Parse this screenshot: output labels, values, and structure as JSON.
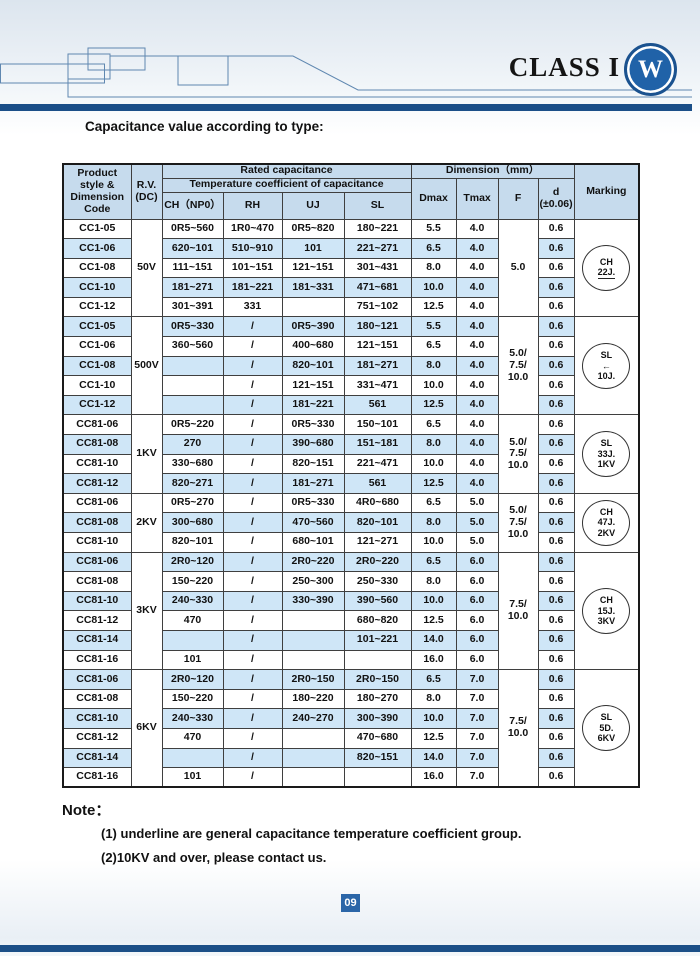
{
  "page": {
    "brand": "CLASS I",
    "logo_letter": "W",
    "title": "Capacitance value according to type:",
    "page_number": "09"
  },
  "table": {
    "headers": {
      "product": "Product\nstyle &\nDimension\nCode",
      "rv": "R.V.\n(DC)",
      "rated_capacitance": "Rated capacitance",
      "temp_coeff": "Temperature coefficient of capacitance",
      "coeff_cols": [
        "CH（NP0）",
        "RH",
        "UJ",
        "SL"
      ],
      "dimension": "Dimension（mm）",
      "dim_cols": [
        "Dmax",
        "Tmax",
        "F",
        "d\n(±0.06)"
      ],
      "marking": "Marking"
    },
    "groups": [
      {
        "rv": "50V",
        "f": "5.0",
        "marking": [
          "CH",
          "22J."
        ],
        "marking_underline_last": true,
        "rows": [
          {
            "code": "CC1-05",
            "ch": "0R5~560",
            "rh": "1R0~470",
            "uj": "0R5~820",
            "sl": "180~221",
            "dmax": "5.5",
            "tmax": "4.0",
            "d": "0.6"
          },
          {
            "code": "CC1-06",
            "ch": "620~101",
            "rh": "510~910",
            "uj": "101",
            "sl": "221~271",
            "dmax": "6.5",
            "tmax": "4.0",
            "d": "0.6"
          },
          {
            "code": "CC1-08",
            "ch": "111~151",
            "rh": "101~151",
            "uj": "121~151",
            "sl": "301~431",
            "dmax": "8.0",
            "tmax": "4.0",
            "d": "0.6"
          },
          {
            "code": "CC1-10",
            "ch": "181~271",
            "rh": "181~221",
            "uj": "181~331",
            "sl": "471~681",
            "dmax": "10.0",
            "tmax": "4.0",
            "d": "0.6"
          },
          {
            "code": "CC1-12",
            "ch": "301~391",
            "rh": "331",
            "uj": "",
            "sl": "751~102",
            "dmax": "12.5",
            "tmax": "4.0",
            "d": "0.6"
          }
        ]
      },
      {
        "rv": "500V",
        "f": "5.0/\n7.5/\n10.0",
        "marking": [
          "SL",
          "←",
          "10J."
        ],
        "marking_underline_last": false,
        "rows": [
          {
            "code": "CC1-05",
            "ch": "0R5~330",
            "rh": "/",
            "uj": "0R5~390",
            "sl": "180~121",
            "dmax": "5.5",
            "tmax": "4.0",
            "d": "0.6"
          },
          {
            "code": "CC1-06",
            "ch": "360~560",
            "rh": "/",
            "uj": "400~680",
            "sl": "121~151",
            "dmax": "6.5",
            "tmax": "4.0",
            "d": "0.6"
          },
          {
            "code": "CC1-08",
            "ch": "",
            "rh": "/",
            "uj": "820~101",
            "sl": "181~271",
            "dmax": "8.0",
            "tmax": "4.0",
            "d": "0.6"
          },
          {
            "code": "CC1-10",
            "ch": "",
            "rh": "/",
            "uj": "121~151",
            "sl": "331~471",
            "dmax": "10.0",
            "tmax": "4.0",
            "d": "0.6"
          },
          {
            "code": "CC1-12",
            "ch": "",
            "rh": "/",
            "uj": "181~221",
            "sl": "561",
            "dmax": "12.5",
            "tmax": "4.0",
            "d": "0.6"
          }
        ]
      },
      {
        "rv": "1KV",
        "f": "5.0/\n7.5/\n10.0",
        "marking": [
          "SL",
          "33J.",
          "1KV"
        ],
        "marking_underline_last": false,
        "rows": [
          {
            "code": "CC81-06",
            "ch": "0R5~220",
            "rh": "/",
            "uj": "0R5~330",
            "sl": "150~101",
            "dmax": "6.5",
            "tmax": "4.0",
            "d": "0.6"
          },
          {
            "code": "CC81-08",
            "ch": "270",
            "rh": "/",
            "uj": "390~680",
            "sl": "151~181",
            "dmax": "8.0",
            "tmax": "4.0",
            "d": "0.6"
          },
          {
            "code": "CC81-10",
            "ch": "330~680",
            "rh": "/",
            "uj": "820~151",
            "sl": "221~471",
            "dmax": "10.0",
            "tmax": "4.0",
            "d": "0.6"
          },
          {
            "code": "CC81-12",
            "ch": "820~271",
            "rh": "/",
            "uj": "181~271",
            "sl": "561",
            "dmax": "12.5",
            "tmax": "4.0",
            "d": "0.6"
          }
        ]
      },
      {
        "rv": "2KV",
        "f": "5.0/\n7.5/\n10.0",
        "marking": [
          "CH",
          "47J.",
          "2KV"
        ],
        "marking_underline_last": false,
        "rows": [
          {
            "code": "CC81-06",
            "ch": "0R5~270",
            "rh": "/",
            "uj": "0R5~330",
            "sl": "4R0~680",
            "dmax": "6.5",
            "tmax": "5.0",
            "d": "0.6"
          },
          {
            "code": "CC81-08",
            "ch": "300~680",
            "rh": "/",
            "uj": "470~560",
            "sl": "820~101",
            "dmax": "8.0",
            "tmax": "5.0",
            "d": "0.6"
          },
          {
            "code": "CC81-10",
            "ch": "820~101",
            "rh": "/",
            "uj": "680~101",
            "sl": "121~271",
            "dmax": "10.0",
            "tmax": "5.0",
            "d": "0.6"
          }
        ]
      },
      {
        "rv": "3KV",
        "f": "7.5/\n10.0",
        "marking": [
          "CH",
          "15J.",
          "3KV"
        ],
        "marking_underline_last": false,
        "rows": [
          {
            "code": "CC81-06",
            "ch": "2R0~120",
            "rh": "/",
            "uj": "2R0~220",
            "sl": "2R0~220",
            "dmax": "6.5",
            "tmax": "6.0",
            "d": "0.6"
          },
          {
            "code": "CC81-08",
            "ch": "150~220",
            "rh": "/",
            "uj": "250~300",
            "sl": "250~330",
            "dmax": "8.0",
            "tmax": "6.0",
            "d": "0.6"
          },
          {
            "code": "CC81-10",
            "ch": "240~330",
            "rh": "/",
            "uj": "330~390",
            "sl": "390~560",
            "dmax": "10.0",
            "tmax": "6.0",
            "d": "0.6"
          },
          {
            "code": "CC81-12",
            "ch": "470",
            "rh": "/",
            "uj": "",
            "sl": "680~820",
            "dmax": "12.5",
            "tmax": "6.0",
            "d": "0.6"
          },
          {
            "code": "CC81-14",
            "ch": "",
            "rh": "/",
            "uj": "",
            "sl": "101~221",
            "dmax": "14.0",
            "tmax": "6.0",
            "d": "0.6"
          },
          {
            "code": "CC81-16",
            "ch": "101",
            "rh": "/",
            "uj": "",
            "sl": "",
            "dmax": "16.0",
            "tmax": "6.0",
            "d": "0.6"
          }
        ]
      },
      {
        "rv": "6KV",
        "f": "7.5/\n10.0",
        "marking": [
          "SL",
          "5D.",
          "6KV"
        ],
        "marking_underline_last": false,
        "rows": [
          {
            "code": "CC81-06",
            "ch": "2R0~120",
            "rh": "/",
            "uj": "2R0~150",
            "sl": "2R0~150",
            "dmax": "6.5",
            "tmax": "7.0",
            "d": "0.6"
          },
          {
            "code": "CC81-08",
            "ch": "150~220",
            "rh": "/",
            "uj": "180~220",
            "sl": "180~270",
            "dmax": "8.0",
            "tmax": "7.0",
            "d": "0.6"
          },
          {
            "code": "CC81-10",
            "ch": "240~330",
            "rh": "/",
            "uj": "240~270",
            "sl": "300~390",
            "dmax": "10.0",
            "tmax": "7.0",
            "d": "0.6"
          },
          {
            "code": "CC81-12",
            "ch": "470",
            "rh": "/",
            "uj": "",
            "sl": "470~680",
            "dmax": "12.5",
            "tmax": "7.0",
            "d": "0.6"
          },
          {
            "code": "CC81-14",
            "ch": "",
            "rh": "/",
            "uj": "",
            "sl": "820~151",
            "dmax": "14.0",
            "tmax": "7.0",
            "d": "0.6"
          },
          {
            "code": "CC81-16",
            "ch": "101",
            "rh": "/",
            "uj": "",
            "sl": "",
            "dmax": "16.0",
            "tmax": "7.0",
            "d": "0.6"
          }
        ]
      }
    ]
  },
  "note": {
    "title": "Note：",
    "items": [
      "(1) underline are general capacitance temperature coefficient group.",
      "(2)10KV and over, please contact us."
    ]
  }
}
